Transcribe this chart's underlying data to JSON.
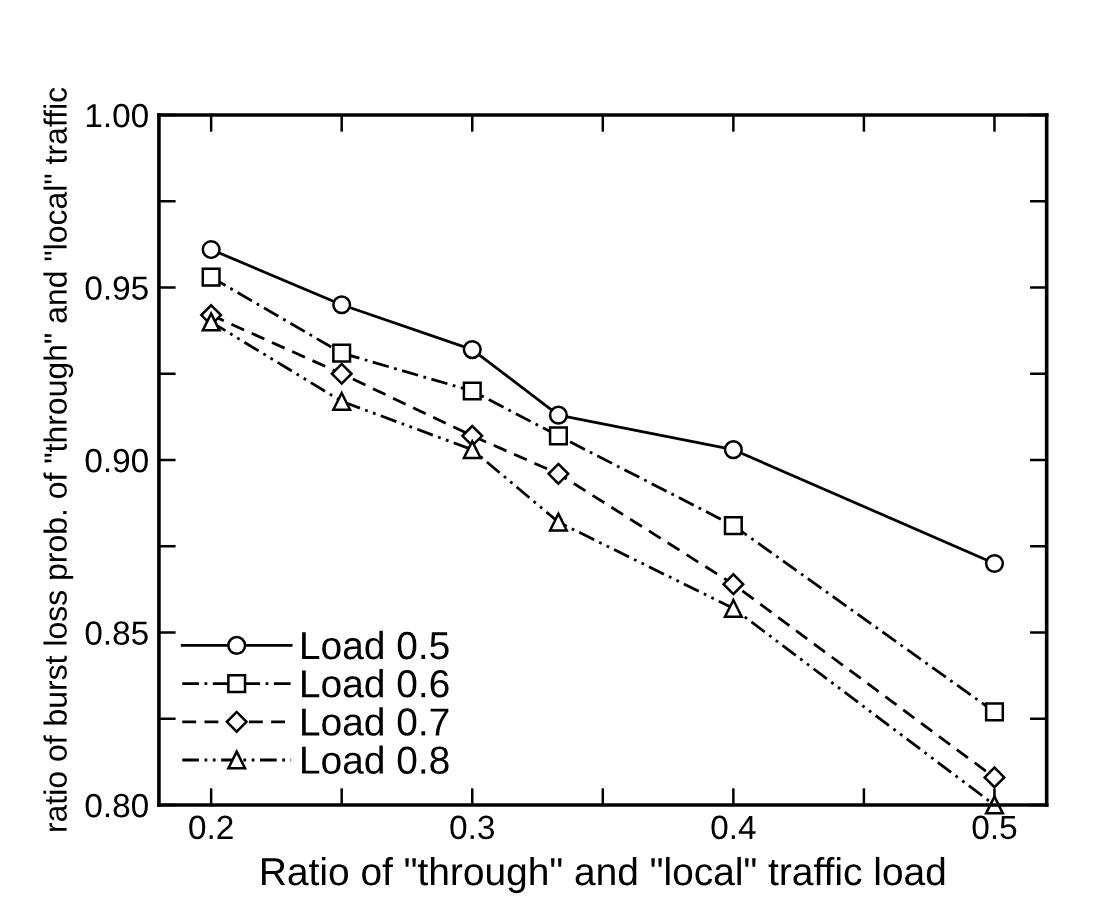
{
  "chart_data": {
    "type": "line",
    "xlabel": "Ratio of \"through\" and \"local\" traffic load",
    "ylabel": "ratio of burst loss prob. of \"through\" and \"local\" traffic",
    "x": [
      0.2,
      0.25,
      0.3,
      0.333,
      0.4,
      0.5
    ],
    "series": [
      {
        "name": "Load 0.5",
        "color": "#000000",
        "marker": "circle",
        "line_style": "solid",
        "values": [
          0.961,
          0.945,
          0.932,
          0.913,
          0.903,
          0.87
        ]
      },
      {
        "name": "Load 0.6",
        "color": "#000000",
        "marker": "square",
        "line_style": "dashdot",
        "values": [
          0.953,
          0.931,
          0.92,
          0.907,
          0.881,
          0.827
        ]
      },
      {
        "name": "Load 0.7",
        "color": "#000000",
        "marker": "diamond",
        "line_style": "dashed",
        "values": [
          0.942,
          0.925,
          0.907,
          0.896,
          0.864,
          0.808
        ]
      },
      {
        "name": "Load 0.8",
        "color": "#000000",
        "marker": "triangle",
        "line_style": "dashdotdot",
        "values": [
          0.94,
          0.917,
          0.903,
          0.882,
          0.857,
          0.8
        ]
      }
    ],
    "xlim": [
      0.18,
      0.52
    ],
    "ylim": [
      0.8,
      1.0
    ],
    "xticks": [
      0.2,
      {
        "value": 0.25,
        "label": null
      },
      0.3,
      {
        "value": 0.35,
        "label": null
      },
      0.4,
      {
        "value": 0.45,
        "label": null
      },
      0.5
    ],
    "yticks": [
      {
        "value": 0.8,
        "label": "0.80"
      },
      {
        "value": 0.825,
        "label": null
      },
      0.85,
      {
        "value": 0.875,
        "label": null
      },
      {
        "value": 0.9,
        "label": "0.90"
      },
      {
        "value": 0.925,
        "label": null
      },
      0.95,
      {
        "value": 0.975,
        "label": null
      },
      {
        "value": 1.0,
        "label": "1.00"
      }
    ],
    "grid": false,
    "legend": "bottom left"
  }
}
